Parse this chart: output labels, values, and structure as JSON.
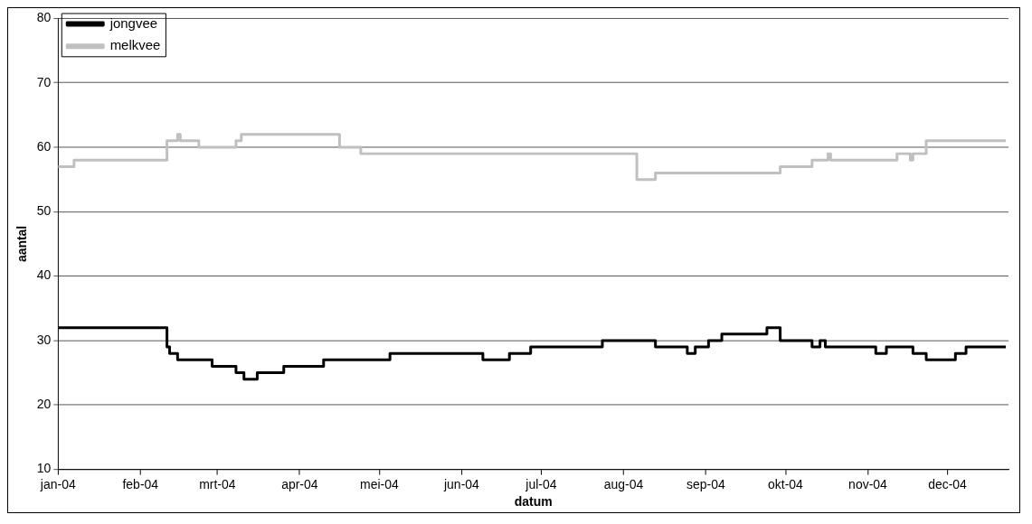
{
  "chart_data": {
    "type": "step",
    "xlabel": "datum",
    "ylabel": "aantal",
    "series": [
      {
        "name": "jongvee",
        "color": "#000000",
        "x": [
          "2004-01-01",
          "2004-02-11",
          "2004-02-12",
          "2004-02-15",
          "2004-02-28",
          "2004-03-08",
          "2004-03-11",
          "2004-03-16",
          "2004-03-26",
          "2004-04-10",
          "2004-05-05",
          "2004-06-09",
          "2004-06-19",
          "2004-06-27",
          "2004-07-24",
          "2004-08-13",
          "2004-08-25",
          "2004-08-28",
          "2004-09-02",
          "2004-09-07",
          "2004-09-24",
          "2004-09-29",
          "2004-10-11",
          "2004-10-14",
          "2004-10-16",
          "2004-11-04",
          "2004-11-08",
          "2004-11-18",
          "2004-11-23",
          "2004-12-04",
          "2004-12-08",
          "2004-12-23"
        ],
        "values": [
          32,
          29,
          28,
          27,
          26,
          25,
          24,
          25,
          26,
          27,
          28,
          27,
          28,
          29,
          30,
          29,
          28,
          29,
          30,
          31,
          32,
          30,
          29,
          30,
          29,
          28,
          29,
          28,
          27,
          28,
          29,
          29
        ]
      },
      {
        "name": "melkvee",
        "color": "#c0c0c0",
        "x": [
          "2004-01-01",
          "2004-01-07",
          "2004-02-11",
          "2004-02-15",
          "2004-02-16",
          "2004-02-23",
          "2004-03-08",
          "2004-03-10",
          "2004-04-16",
          "2004-04-24",
          "2004-08-06",
          "2004-08-13",
          "2004-09-29",
          "2004-10-11",
          "2004-10-17",
          "2004-10-18",
          "2004-11-12",
          "2004-11-17",
          "2004-11-18",
          "2004-11-23",
          "2004-12-23"
        ],
        "values": [
          57,
          58,
          61,
          62,
          61,
          60,
          61,
          62,
          60,
          59,
          55,
          56,
          57,
          58,
          59,
          58,
          59,
          58,
          59,
          61,
          61
        ]
      }
    ],
    "xlim": [
      "2004-01-01",
      "2004-12-24"
    ],
    "xticks": [
      {
        "value": "2004-01-01",
        "label": "jan-04"
      },
      {
        "value": "2004-02-01",
        "label": "feb-04"
      },
      {
        "value": "2004-03-01",
        "label": "mrt-04"
      },
      {
        "value": "2004-04-01",
        "label": "apr-04"
      },
      {
        "value": "2004-05-01",
        "label": "mei-04"
      },
      {
        "value": "2004-06-01",
        "label": "jun-04"
      },
      {
        "value": "2004-07-01",
        "label": "jul-04"
      },
      {
        "value": "2004-08-01",
        "label": "aug-04"
      },
      {
        "value": "2004-09-01",
        "label": "sep-04"
      },
      {
        "value": "2004-10-01",
        "label": "okt-04"
      },
      {
        "value": "2004-11-01",
        "label": "nov-04"
      },
      {
        "value": "2004-12-01",
        "label": "dec-04"
      }
    ],
    "ylim": [
      10,
      80
    ],
    "yticks": [
      10,
      20,
      30,
      40,
      50,
      60,
      70,
      80
    ],
    "grid": "y",
    "legend": "top left",
    "marker": "none",
    "line_style": "solid"
  }
}
